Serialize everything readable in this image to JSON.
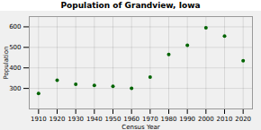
{
  "chart_data": {
    "type": "scatter",
    "title": "Population of Grandview, Iowa",
    "xlabel": "Census Year",
    "ylabel": "Population",
    "x": [
      1910,
      1920,
      1930,
      1940,
      1950,
      1960,
      1970,
      1980,
      1990,
      2000,
      2010,
      2020
    ],
    "values": [
      275,
      340,
      320,
      315,
      310,
      300,
      355,
      465,
      510,
      595,
      555,
      435
    ],
    "color": "#006400",
    "xlim": [
      1905,
      2025
    ],
    "xticks": [
      1910,
      1920,
      1930,
      1940,
      1950,
      1960,
      1970,
      1980,
      1990,
      2000,
      2010,
      2020
    ],
    "ylim": [
      200,
      650
    ],
    "yticks": [
      300,
      400,
      500,
      600
    ],
    "grid": true
  }
}
